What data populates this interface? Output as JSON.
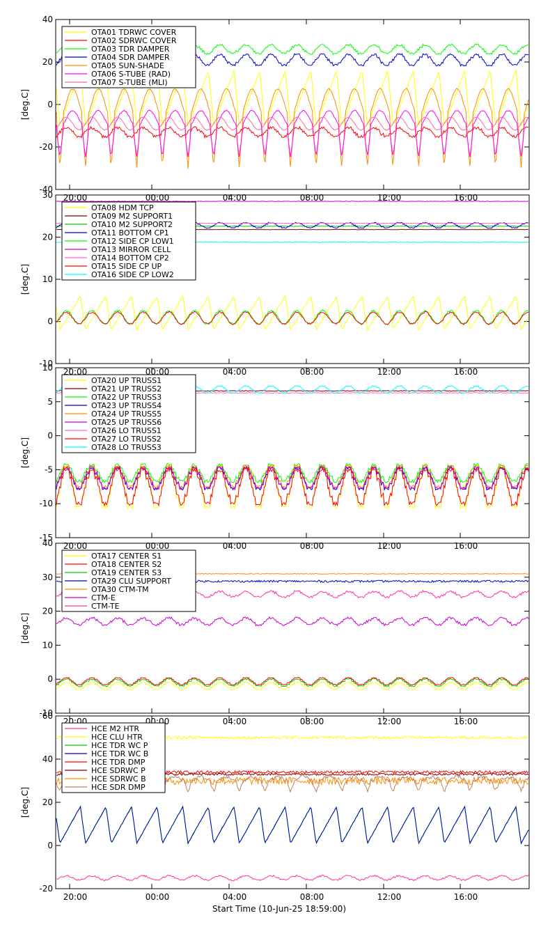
{
  "figure": {
    "bottom_label": "Start Time (10-Jun-25 18:59:00)",
    "time_tick_labels": [
      "20:00",
      "00:00",
      "04:00",
      "08:00",
      "12:00",
      "16:00"
    ]
  },
  "chart_data": [
    {
      "type": "line",
      "ylabel": "[deg.C]",
      "ylim": [
        -40,
        40
      ],
      "yticks": [
        -40,
        -20,
        0,
        20,
        40
      ],
      "x_tick_labels": [
        "20:00",
        "00:00",
        "04:00",
        "08:00",
        "12:00",
        "16:00"
      ],
      "legend_position": "top-left",
      "series": [
        {
          "name": "OTA01 TDRWC COVER",
          "color": "#ffff00",
          "pattern": "saw",
          "base": 3,
          "amp": 13,
          "noise": 0.3
        },
        {
          "name": "OTA02 SDRWC COVER",
          "color": "#ff0000",
          "pattern": "step",
          "base": -13,
          "amp": 2,
          "noise": 0.6
        },
        {
          "name": "OTA03 TDR DAMPER",
          "color": "#00ff00",
          "pattern": "step",
          "base": 26,
          "amp": 2,
          "noise": 0.4
        },
        {
          "name": "OTA04 SDR DAMPER",
          "color": "#0000cc",
          "pattern": "step",
          "base": 21,
          "amp": 2.5,
          "noise": 0.4
        },
        {
          "name": "OTA05 SUN-SHADE",
          "color": "#ff8c00",
          "pattern": "spike",
          "base": -8,
          "amp": 22,
          "noise": 0.3
        },
        {
          "name": "OTA06 S-TUBE (RAD)",
          "color": "#ff00ff",
          "pattern": "spike",
          "base": -12,
          "amp": 13,
          "noise": 0.3
        },
        {
          "name": "OTA07 S-TUBE (MLI)",
          "color": "#ff6699",
          "pattern": "sine",
          "base": -9,
          "amp": 3,
          "noise": 0.2
        }
      ]
    },
    {
      "type": "line",
      "ylabel": "[deg.C]",
      "ylim": [
        -10,
        30
      ],
      "yticks": [
        -10,
        0,
        10,
        20,
        30
      ],
      "x_tick_labels": [
        "20:00",
        "00:00",
        "04:00",
        "08:00",
        "12:00",
        "16:00"
      ],
      "legend_position": "top-left",
      "series": [
        {
          "name": "OTA08 HDM TCP",
          "color": "#ffff00",
          "pattern": "saw",
          "base": 2,
          "amp": 4,
          "noise": 0.2
        },
        {
          "name": "OTA09 M2 SUPPORT1",
          "color": "#800000",
          "pattern": "flat",
          "base": 21.8,
          "amp": 0,
          "noise": 0.05
        },
        {
          "name": "OTA10 M2 SUPPORT2",
          "color": "#00cc00",
          "pattern": "flat",
          "base": 22.6,
          "amp": 0,
          "noise": 0.05
        },
        {
          "name": "OTA11 BOTTOM CP1",
          "color": "#0000cc",
          "pattern": "step",
          "base": 22.8,
          "amp": 0.6,
          "noise": 0.1
        },
        {
          "name": "OTA12 SIDE CP LOW1",
          "color": "#00ff00",
          "pattern": "sine",
          "base": 1,
          "amp": 1.6,
          "noise": 0.2
        },
        {
          "name": "OTA13 MIRROR CELL",
          "color": "#cc00cc",
          "pattern": "flat",
          "base": 28.5,
          "amp": 0,
          "noise": 0.05
        },
        {
          "name": "OTA14 BOTTOM CP2",
          "color": "#ff66cc",
          "pattern": "flat",
          "base": 23.3,
          "amp": 0,
          "noise": 0.05
        },
        {
          "name": "OTA15 SIDE CP UP",
          "color": "#ff0000",
          "pattern": "sine",
          "base": 0.8,
          "amp": 1.4,
          "noise": 0.2
        },
        {
          "name": "OTA16 SIDE CP LOW2",
          "color": "#00ffff",
          "pattern": "flat",
          "base": 18.8,
          "amp": 0,
          "noise": 0.1
        }
      ]
    },
    {
      "type": "line",
      "ylabel": "[deg.C]",
      "ylim": [
        -15,
        10
      ],
      "yticks": [
        -15,
        -10,
        -5,
        0,
        5,
        10
      ],
      "x_tick_labels": [
        "20:00",
        "00:00",
        "04:00",
        "08:00",
        "12:00",
        "16:00"
      ],
      "legend_position": "top-left",
      "series": [
        {
          "name": "OTA20 UP TRUSS1",
          "color": "#ffff00",
          "pattern": "step",
          "base": -7.5,
          "amp": 3,
          "noise": 0.2
        },
        {
          "name": "OTA21 UP TRUSS2",
          "color": "#800000",
          "pattern": "flat",
          "base": 6.6,
          "amp": 0,
          "noise": 0.05
        },
        {
          "name": "OTA22 UP TRUSS3",
          "color": "#00ff00",
          "pattern": "step",
          "base": -5.5,
          "amp": 1.2,
          "noise": 0.2
        },
        {
          "name": "OTA23 UP TRUSS4",
          "color": "#0000cc",
          "pattern": "step",
          "base": -6.3,
          "amp": 1.5,
          "noise": 0.2
        },
        {
          "name": "OTA24 UP TRUSS5",
          "color": "#ff8c00",
          "pattern": "step",
          "base": -6,
          "amp": 1.5,
          "noise": 0.2
        },
        {
          "name": "OTA25 UP TRUSS6",
          "color": "#cc00cc",
          "pattern": "step",
          "base": -6.2,
          "amp": 1.5,
          "noise": 0.2
        },
        {
          "name": "OTA26 LO TRUSS1",
          "color": "#ff66cc",
          "pattern": "flat",
          "base": 6.3,
          "amp": 0,
          "noise": 0.05
        },
        {
          "name": "OTA27 LO TRUSS2",
          "color": "#ff0000",
          "pattern": "step",
          "base": -7.5,
          "amp": 2.5,
          "noise": 0.3
        },
        {
          "name": "OTA28 LO TRUSS3",
          "color": "#00ffff",
          "pattern": "step",
          "base": 6.8,
          "amp": 0.5,
          "noise": 0.05
        }
      ]
    },
    {
      "type": "line",
      "ylabel": "[deg.C]",
      "ylim": [
        -10,
        40
      ],
      "yticks": [
        -10,
        0,
        10,
        20,
        30,
        40
      ],
      "x_tick_labels": [
        "20:00",
        "00:00",
        "04:00",
        "08:00",
        "12:00",
        "16:00"
      ],
      "legend_position": "top-left",
      "series": [
        {
          "name": "OTA17 CENTER S1",
          "color": "#ffff00",
          "pattern": "step",
          "base": -2,
          "amp": 1,
          "noise": 0.1
        },
        {
          "name": "OTA18 CENTER S2",
          "color": "#ff0000",
          "pattern": "step",
          "base": -0.6,
          "amp": 1,
          "noise": 0.1
        },
        {
          "name": "OTA19 CENTER S3",
          "color": "#00cc00",
          "pattern": "step",
          "base": -1,
          "amp": 1,
          "noise": 0.2
        },
        {
          "name": "OTA29 CLU SUPPORT",
          "color": "#0000cc",
          "pattern": "flat",
          "base": 28.8,
          "amp": 0,
          "noise": 0.3
        },
        {
          "name": "OTA30 CTM-TM",
          "color": "#ff8c00",
          "pattern": "flat",
          "base": 31,
          "amp": 0,
          "noise": 0.1
        },
        {
          "name": "CTM-E",
          "color": "#cc00cc",
          "pattern": "step",
          "base": 17,
          "amp": 1,
          "noise": 0.3
        },
        {
          "name": "CTM-TE",
          "color": "#ff3399",
          "pattern": "step",
          "base": 25,
          "amp": 0.8,
          "noise": 0.3
        }
      ]
    },
    {
      "type": "line",
      "ylabel": "[deg.C]",
      "ylim": [
        -20,
        60
      ],
      "yticks": [
        -20,
        0,
        20,
        40,
        60
      ],
      "x_tick_labels": [
        "20:00",
        "00:00",
        "04:00",
        "08:00",
        "12:00",
        "16:00"
      ],
      "legend_position": "top-left",
      "series": [
        {
          "name": "HCE M2 HTR",
          "color": "#ff3399",
          "pattern": "sine",
          "base": -15,
          "amp": 1,
          "noise": 0.4
        },
        {
          "name": "HCE CLU HTR",
          "color": "#ffff00",
          "pattern": "flat",
          "base": 50,
          "amp": 0,
          "noise": 0.7
        },
        {
          "name": "HCE TDR WC P",
          "color": "#00cc00",
          "pattern": "saw",
          "base": 9.5,
          "amp": 8.5,
          "noise": 0.2
        },
        {
          "name": "HCE TDR WC B",
          "color": "#0000cc",
          "pattern": "saw",
          "base": 9.5,
          "amp": 8.5,
          "noise": 0.2
        },
        {
          "name": "HCE TDR DMP",
          "color": "#ff0000",
          "pattern": "flat",
          "base": 34,
          "amp": 0,
          "noise": 0.6
        },
        {
          "name": "HCE SDRWC P",
          "color": "#800000",
          "pattern": "flat",
          "base": 33,
          "amp": 0,
          "noise": 0.5
        },
        {
          "name": "HCE SDRWC B",
          "color": "#ff8c00",
          "pattern": "flat",
          "base": 30,
          "amp": 0,
          "noise": 1.8
        },
        {
          "name": "HCE SDR DMP",
          "color": "#c08060",
          "pattern": "spike",
          "base": 29,
          "amp": 4,
          "noise": 0.8
        }
      ]
    }
  ]
}
